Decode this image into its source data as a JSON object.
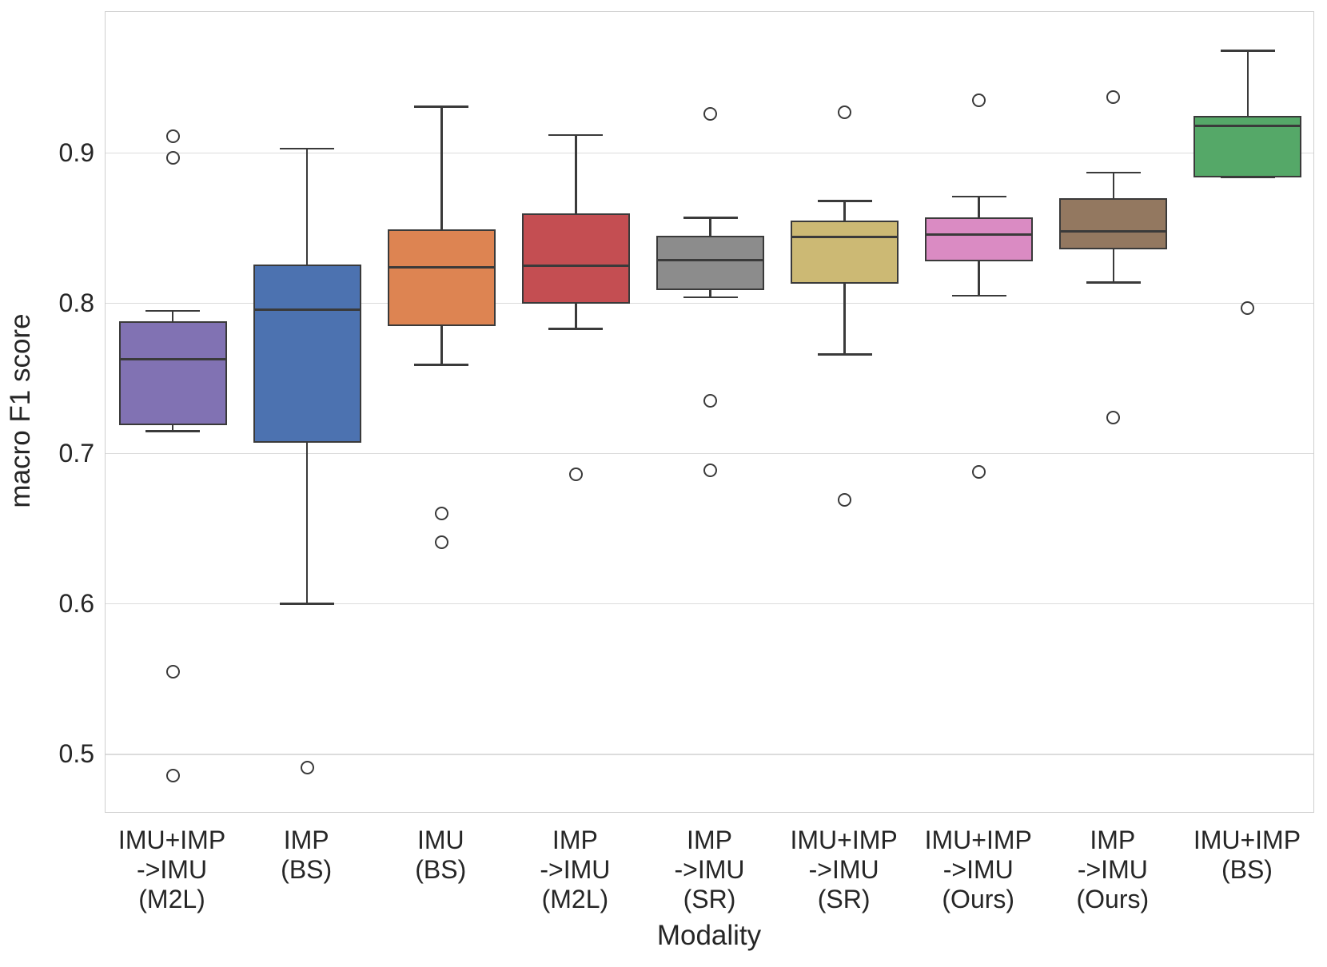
{
  "chart_data": {
    "type": "box",
    "title": "",
    "xlabel": "Modality",
    "ylabel": "macro F1 score",
    "ylim": [
      0.4605,
      0.9939
    ],
    "yticks": [
      "0.5",
      "0.6",
      "0.7",
      "0.8",
      "0.9"
    ],
    "ytick_values": [
      0.5,
      0.6,
      0.7,
      0.8,
      0.9
    ],
    "grid": true,
    "legend": "none",
    "categories": [
      "IMU+IMP->IMU (M2L)",
      "IMP (BS)",
      "IMU (BS)",
      "IMP->IMU (M2L)",
      "IMP->IMU (SR)",
      "IMU+IMP->IMU (SR)",
      "IMU+IMP->IMU (Ours)",
      "IMP->IMU (Ours)",
      "IMU+IMP (BS)"
    ],
    "boxes": [
      {
        "label_lines": [
          "IMU+IMP",
          "->IMU",
          "(M2L)"
        ],
        "color": "#8172B3",
        "whisker_low": 0.715,
        "q1": 0.719,
        "median": 0.763,
        "q3": 0.788,
        "whisker_high": 0.795,
        "outliers": [
          0.911,
          0.897,
          0.555,
          0.486
        ]
      },
      {
        "label_lines": [
          "IMP",
          "(BS)"
        ],
        "color": "#4C72B0",
        "whisker_low": 0.6,
        "q1": 0.707,
        "median": 0.796,
        "q3": 0.826,
        "whisker_high": 0.903,
        "outliers": [
          0.491
        ]
      },
      {
        "label_lines": [
          "IMU",
          "(BS)"
        ],
        "color": "#DD8452",
        "whisker_low": 0.759,
        "q1": 0.785,
        "median": 0.824,
        "q3": 0.849,
        "whisker_high": 0.931,
        "outliers": [
          0.66,
          0.641
        ]
      },
      {
        "label_lines": [
          "IMP",
          "->IMU",
          "(M2L)"
        ],
        "color": "#C44E52",
        "whisker_low": 0.783,
        "q1": 0.8,
        "median": 0.825,
        "q3": 0.86,
        "whisker_high": 0.912,
        "outliers": [
          0.686
        ]
      },
      {
        "label_lines": [
          "IMP",
          "->IMU",
          "(SR)"
        ],
        "color": "#8C8C8C",
        "whisker_low": 0.804,
        "q1": 0.809,
        "median": 0.829,
        "q3": 0.845,
        "whisker_high": 0.857,
        "outliers": [
          0.926,
          0.735,
          0.689
        ]
      },
      {
        "label_lines": [
          "IMU+IMP",
          "->IMU",
          "(SR)"
        ],
        "color": "#CCB974",
        "whisker_low": 0.766,
        "q1": 0.813,
        "median": 0.844,
        "q3": 0.855,
        "whisker_high": 0.868,
        "outliers": [
          0.927,
          0.669
        ]
      },
      {
        "label_lines": [
          "IMU+IMP",
          "->IMU",
          "(Ours)"
        ],
        "color": "#DA8BC3",
        "whisker_low": 0.805,
        "q1": 0.828,
        "median": 0.846,
        "q3": 0.857,
        "whisker_high": 0.871,
        "outliers": [
          0.935,
          0.688
        ]
      },
      {
        "label_lines": [
          "IMP",
          "->IMU",
          "(Ours)"
        ],
        "color": "#937860",
        "whisker_low": 0.814,
        "q1": 0.836,
        "median": 0.848,
        "q3": 0.87,
        "whisker_high": 0.887,
        "outliers": [
          0.937,
          0.724
        ]
      },
      {
        "label_lines": [
          "IMU+IMP",
          "(BS)"
        ],
        "color": "#55A868",
        "whisker_low": 0.884,
        "q1": 0.884,
        "median": 0.918,
        "q3": 0.925,
        "whisker_high": 0.968,
        "outliers": [
          0.797
        ]
      }
    ]
  },
  "style": {
    "line_color": "#3a3a3a",
    "grid_color": "#dcdcdc",
    "spine_color": "#cfcfcf",
    "text_color": "#262626",
    "background": "#ffffff"
  }
}
